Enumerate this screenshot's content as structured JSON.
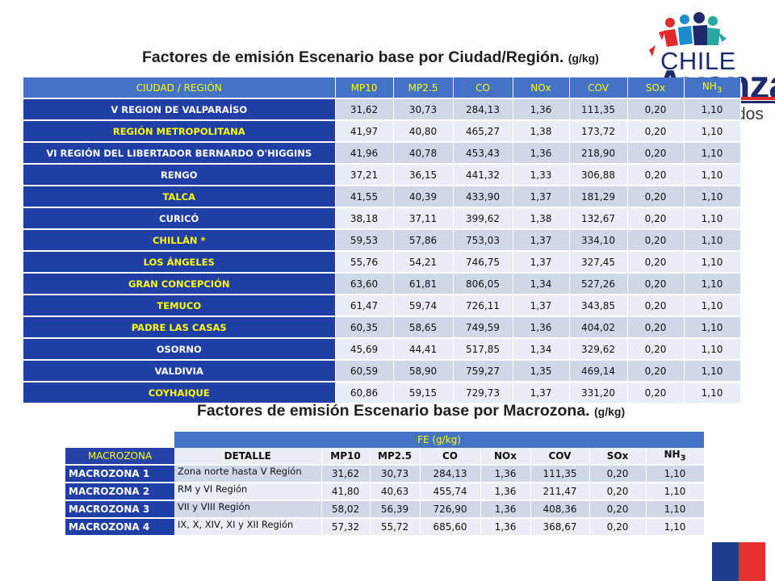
{
  "logo": {
    "line1": "CHILE",
    "line2": "Avanza",
    "line3": "dos"
  },
  "title1": {
    "main": "Factores de emisión Escenario base por Ciudad/Región.",
    "unit": "(g/kg)"
  },
  "title2": {
    "main": "Factores de emisión Escenario base por Macrozona.",
    "unit": "(g/kg)"
  },
  "table1": {
    "headers": [
      "CIUDAD / REGIÓN",
      "MP10",
      "MP2.5",
      "CO",
      "NOx",
      "COV",
      "SOx",
      "NH3"
    ],
    "nh3_sub": "3",
    "rows": [
      {
        "name": "V REGION DE VALPARAÍSO",
        "yellow": false,
        "values": [
          "31,62",
          "30,73",
          "284,13",
          "1,36",
          "111,35",
          "0,20",
          "1,10"
        ]
      },
      {
        "name": "REGIÓN METROPOLITANA",
        "yellow": true,
        "values": [
          "41,97",
          "40,80",
          "465,27",
          "1,38",
          "173,72",
          "0,20",
          "1,10"
        ]
      },
      {
        "name": "VI REGIÓN DEL LIBERTADOR BERNARDO O'HIGGINS",
        "yellow": false,
        "values": [
          "41,96",
          "40,78",
          "453,43",
          "1,36",
          "218,90",
          "0,20",
          "1,10"
        ]
      },
      {
        "name": "RENGO",
        "yellow": false,
        "values": [
          "37,21",
          "36,15",
          "441,32",
          "1,33",
          "306,88",
          "0,20",
          "1,10"
        ]
      },
      {
        "name": "TALCA",
        "yellow": true,
        "values": [
          "41,55",
          "40,39",
          "433,90",
          "1,37",
          "181,29",
          "0,20",
          "1,10"
        ]
      },
      {
        "name": "CURICÓ",
        "yellow": false,
        "values": [
          "38,18",
          "37,11",
          "399,62",
          "1,38",
          "132,67",
          "0,20",
          "1,10"
        ]
      },
      {
        "name": "CHILLÁN *",
        "yellow": true,
        "values": [
          "59,53",
          "57,86",
          "753,03",
          "1,37",
          "334,10",
          "0,20",
          "1,10"
        ]
      },
      {
        "name": "LOS ÁNGELES",
        "yellow": true,
        "values": [
          "55,76",
          "54,21",
          "746,75",
          "1,37",
          "327,45",
          "0,20",
          "1,10"
        ]
      },
      {
        "name": "GRAN CONCEPCIÓN",
        "yellow": true,
        "values": [
          "63,60",
          "61,81",
          "806,05",
          "1,34",
          "527,26",
          "0,20",
          "1,10"
        ]
      },
      {
        "name": "TEMUCO",
        "yellow": true,
        "values": [
          "61,47",
          "59,74",
          "726,11",
          "1,37",
          "343,85",
          "0,20",
          "1,10"
        ]
      },
      {
        "name": "PADRE LAS CASAS",
        "yellow": true,
        "values": [
          "60,35",
          "58,65",
          "749,59",
          "1,36",
          "404,02",
          "0,20",
          "1,10"
        ]
      },
      {
        "name": "OSORNO",
        "yellow": false,
        "values": [
          "45,69",
          "44,41",
          "517,85",
          "1,34",
          "329,62",
          "0,20",
          "1,10"
        ]
      },
      {
        "name": "VALDIVIA",
        "yellow": false,
        "values": [
          "60,59",
          "58,90",
          "759,27",
          "1,35",
          "469,14",
          "0,20",
          "1,10"
        ]
      },
      {
        "name": "COYHAIQUE",
        "yellow": true,
        "values": [
          "60,86",
          "59,15",
          "729,73",
          "1,37",
          "331,20",
          "0,20",
          "1,10"
        ]
      }
    ]
  },
  "table2": {
    "fe_label": "FE (g/kg)",
    "macro_label": "MACROZONA",
    "headers": [
      "DETALLE",
      "MP10",
      "MP2.5",
      "CO",
      "NOx",
      "COV",
      "SOx",
      "NH3"
    ],
    "nh3_sub": "3",
    "rows": [
      {
        "name": "MACROZONA 1",
        "detail": "Zona norte hasta V Región",
        "values": [
          "31,62",
          "30,73",
          "284,13",
          "1,36",
          "111,35",
          "0,20",
          "1,10"
        ]
      },
      {
        "name": "MACROZONA 2",
        "detail": "RM y VI Región",
        "values": [
          "41,80",
          "40,63",
          "455,74",
          "1,36",
          "211,47",
          "0,20",
          "1,10"
        ]
      },
      {
        "name": "MACROZONA 3",
        "detail": "VII y VIII Región",
        "values": [
          "58,02",
          "56,39",
          "726,90",
          "1,36",
          "408,36",
          "0,20",
          "1,10"
        ]
      },
      {
        "name": "MACROZONA 4",
        "detail": "IX, X, XIV, XI y XII Región",
        "values": [
          "57,32",
          "55,72",
          "685,60",
          "1,36",
          "368,67",
          "0,20",
          "1,10"
        ]
      }
    ]
  },
  "colors": {
    "header_blue": "#4472c4",
    "name_blue": "#1f3fa6",
    "header_text": "#ffff00",
    "row_light": "#e9edf4",
    "row_dark": "#d0d8e8",
    "flag_blue": "#1f3d8f",
    "flag_red": "#e3312d"
  },
  "icons": [
    "logo-children-icon",
    "flag-icon"
  ]
}
